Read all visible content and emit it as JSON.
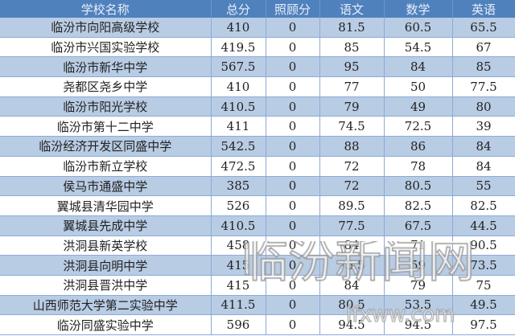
{
  "colors": {
    "header": "#4f81bd",
    "row_alt": "#b8cce4",
    "row": "#ffffff"
  },
  "headers": [
    "学校名称",
    "总分",
    "照顾分",
    "语文",
    "数学",
    "英语"
  ],
  "rows": [
    [
      "临汾市向阳高级学校",
      "410",
      "0",
      "81.5",
      "60.5",
      "65.5"
    ],
    [
      "临汾市兴国实验学校",
      "419.5",
      "0",
      "85",
      "54.5",
      "67"
    ],
    [
      "临汾市新华中学",
      "567.5",
      "0",
      "95",
      "84",
      "85"
    ],
    [
      "尧都区尧乡中学",
      "410",
      "0",
      "77",
      "50",
      "77.5"
    ],
    [
      "临汾市阳光学校",
      "410.5",
      "0",
      "79",
      "49",
      "80"
    ],
    [
      "临汾市第十二中学",
      "411",
      "0",
      "74.5",
      "72.5",
      "39"
    ],
    [
      "临汾经济开发区同盛中学",
      "542.5",
      "0",
      "88",
      "86",
      "84"
    ],
    [
      "临汾市新立学校",
      "472.5",
      "0",
      "72",
      "78",
      "84"
    ],
    [
      "侯马市通盛中学",
      "385",
      "0",
      "72",
      "80.5",
      "55"
    ],
    [
      "翼城县清华园中学",
      "526",
      "0",
      "89.5",
      "82.5",
      "82.5"
    ],
    [
      "翼城县先成中学",
      "410.5",
      "0",
      "77.5",
      "67.5",
      "44.5"
    ],
    [
      "洪洞县新英学校",
      "458",
      "0",
      "84",
      "71",
      "90.5"
    ],
    [
      "洪洞县向明中学",
      "415",
      "0",
      "75.5",
      "59",
      "73.5"
    ],
    [
      "洪洞县晋洪中学",
      "415",
      "0",
      "84",
      "79",
      "75"
    ],
    [
      "山西师范大学第二实验中学",
      "411.5",
      "0",
      "80.5",
      "53.5",
      "49.5"
    ],
    [
      "临汾同盛实验中学",
      "596",
      "0",
      "94.5",
      "94.5",
      "97.5"
    ]
  ],
  "watermark": {
    "text": "临汾新闻网",
    "url": "lfxww.com"
  }
}
